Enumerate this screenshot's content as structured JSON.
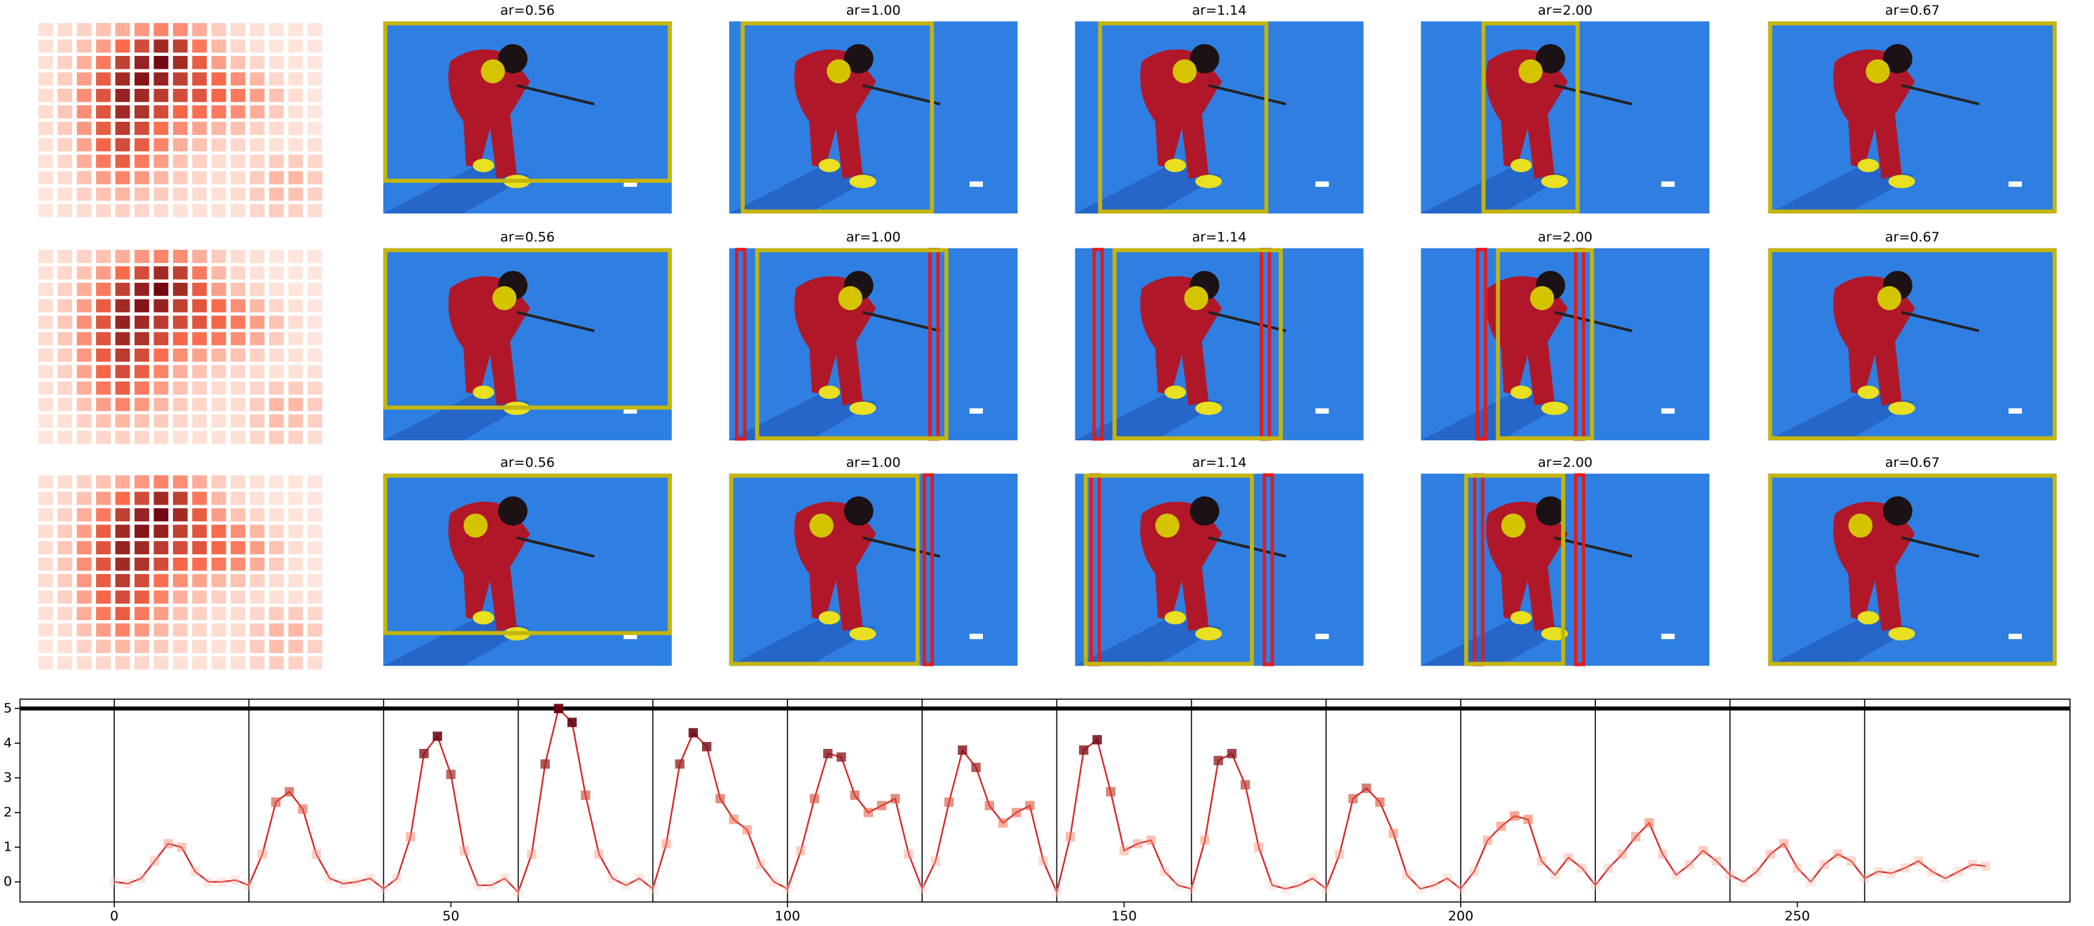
{
  "heatmap": {
    "values": [
      [
        0.2,
        0.3,
        0.5,
        0.8,
        1.2,
        1.6,
        2.0,
        1.8,
        1.2,
        0.6,
        0.3,
        0.2,
        0.1,
        0.1,
        0.1
      ],
      [
        0.2,
        0.4,
        0.8,
        1.5,
        2.5,
        3.2,
        4.0,
        3.5,
        2.2,
        1.0,
        0.4,
        0.2,
        0.1,
        0.1,
        0.1
      ],
      [
        0.2,
        0.5,
        1.2,
        2.2,
        3.5,
        4.2,
        4.8,
        4.0,
        2.8,
        1.5,
        0.8,
        0.4,
        0.2,
        0.1,
        0.1
      ],
      [
        0.3,
        0.6,
        1.5,
        2.8,
        4.0,
        4.5,
        4.2,
        3.5,
        3.0,
        2.5,
        1.8,
        1.0,
        0.4,
        0.2,
        0.1
      ],
      [
        0.3,
        0.7,
        1.8,
        3.0,
        4.2,
        4.0,
        3.6,
        3.2,
        3.0,
        2.6,
        2.2,
        1.5,
        0.8,
        0.3,
        0.1
      ],
      [
        0.3,
        0.7,
        1.8,
        3.0,
        4.0,
        3.8,
        3.2,
        2.6,
        2.4,
        2.2,
        1.8,
        1.2,
        0.6,
        0.2,
        0.1
      ],
      [
        0.3,
        0.6,
        1.6,
        2.8,
        3.6,
        3.2,
        2.4,
        1.8,
        1.4,
        1.0,
        0.8,
        0.5,
        0.3,
        0.2,
        0.1
      ],
      [
        0.2,
        0.5,
        1.4,
        2.6,
        3.2,
        2.8,
        2.0,
        1.2,
        0.8,
        0.5,
        0.4,
        0.3,
        0.2,
        0.2,
        0.2
      ],
      [
        0.2,
        0.4,
        1.2,
        2.2,
        2.8,
        2.2,
        1.5,
        0.8,
        0.5,
        0.3,
        0.3,
        0.4,
        0.6,
        0.6,
        0.4
      ],
      [
        0.2,
        0.3,
        0.8,
        1.5,
        2.0,
        1.6,
        1.0,
        0.6,
        0.4,
        0.3,
        0.3,
        0.6,
        1.0,
        1.0,
        0.6
      ],
      [
        0.1,
        0.2,
        0.5,
        0.8,
        1.0,
        0.8,
        0.6,
        0.4,
        0.3,
        0.2,
        0.3,
        0.6,
        0.9,
        0.8,
        0.5
      ],
      [
        0.1,
        0.2,
        0.3,
        0.4,
        0.5,
        0.4,
        0.3,
        0.2,
        0.2,
        0.2,
        0.2,
        0.4,
        0.6,
        0.5,
        0.3
      ]
    ]
  },
  "panel_rows": [
    {
      "titles": [
        "ar=0.56",
        "ar=1.00",
        "ar=1.14",
        "ar=2.00",
        "ar=0.67"
      ]
    },
    {
      "titles": [
        "ar=0.56",
        "ar=1.00",
        "ar=1.14",
        "ar=2.00",
        "ar=0.67"
      ]
    },
    {
      "titles": [
        "ar=0.56",
        "ar=1.00",
        "ar=1.14",
        "ar=2.00",
        "ar=0.67"
      ]
    }
  ],
  "chart_data": {
    "type": "line",
    "color": "#d62728",
    "x": [
      0,
      2,
      4,
      6,
      8,
      10,
      12,
      14,
      16,
      18,
      20,
      22,
      24,
      26,
      28,
      30,
      32,
      34,
      36,
      38,
      40,
      42,
      44,
      46,
      48,
      50,
      52,
      54,
      56,
      58,
      60,
      62,
      64,
      66,
      68,
      70,
      72,
      74,
      76,
      78,
      80,
      82,
      84,
      86,
      88,
      90,
      92,
      94,
      96,
      98,
      100,
      102,
      104,
      106,
      108,
      110,
      112,
      114,
      116,
      118,
      120,
      122,
      124,
      126,
      128,
      130,
      132,
      134,
      136,
      138,
      140,
      142,
      144,
      146,
      148,
      150,
      152,
      154,
      156,
      158,
      160,
      162,
      164,
      166,
      168,
      170,
      172,
      174,
      176,
      178,
      180,
      182,
      184,
      186,
      188,
      190,
      192,
      194,
      196,
      198,
      200,
      202,
      204,
      206,
      208,
      210,
      212,
      214,
      216,
      218,
      220,
      222,
      224,
      226,
      228,
      230,
      232,
      234,
      236,
      238,
      240,
      242,
      244,
      246,
      248,
      250,
      252,
      254,
      256,
      258,
      260,
      262,
      264,
      266,
      268,
      270,
      272,
      274,
      276,
      278
    ],
    "values": [
      0,
      -0.05,
      0.1,
      0.6,
      1.1,
      1.0,
      0.3,
      0,
      0,
      0.05,
      -0.1,
      0.8,
      2.3,
      2.6,
      2.1,
      0.8,
      0.1,
      -0.05,
      0,
      0.1,
      -0.2,
      0.1,
      1.3,
      3.7,
      4.2,
      3.1,
      0.9,
      -0.1,
      -0.1,
      0.1,
      -0.3,
      0.8,
      3.4,
      5.0,
      4.6,
      2.5,
      0.8,
      0.1,
      -0.1,
      0.1,
      -0.2,
      1.1,
      3.4,
      4.3,
      3.9,
      2.4,
      1.8,
      1.5,
      0.5,
      0,
      -0.2,
      0.9,
      2.4,
      3.7,
      3.6,
      2.5,
      2.0,
      2.2,
      2.4,
      0.8,
      -0.2,
      0.6,
      2.3,
      3.8,
      3.3,
      2.2,
      1.7,
      2.0,
      2.2,
      0.6,
      -0.3,
      1.3,
      3.8,
      4.1,
      2.6,
      0.9,
      1.1,
      1.2,
      0.3,
      -0.1,
      -0.2,
      1.2,
      3.5,
      3.7,
      2.8,
      1.0,
      -0.1,
      -0.2,
      -0.1,
      0.1,
      -0.2,
      0.8,
      2.4,
      2.7,
      2.3,
      1.4,
      0.2,
      -0.2,
      -0.1,
      0.1,
      -0.2,
      0.3,
      1.2,
      1.6,
      1.9,
      1.8,
      0.6,
      0.2,
      0.7,
      0.4,
      -0.1,
      0.4,
      0.8,
      1.3,
      1.7,
      0.8,
      0.2,
      0.5,
      0.9,
      0.6,
      0.2,
      0,
      0.3,
      0.8,
      1.1,
      0.4,
      0,
      0.5,
      0.8,
      0.6,
      0.1,
      0.3,
      0.25,
      0.4,
      0.6,
      0.3,
      0.1,
      0.3,
      0.5,
      0.45
    ],
    "xlim": [
      -14,
      290.5
    ],
    "ylim": [
      -0.58,
      5.27
    ],
    "xticks": [
      0,
      50,
      100,
      150,
      200,
      250
    ],
    "yticks": [
      0,
      1,
      2,
      3,
      4,
      5
    ],
    "vlines": [
      0,
      20,
      40,
      60,
      80,
      100,
      120,
      140,
      160,
      180,
      200,
      220,
      240,
      260
    ],
    "hline": 5
  }
}
